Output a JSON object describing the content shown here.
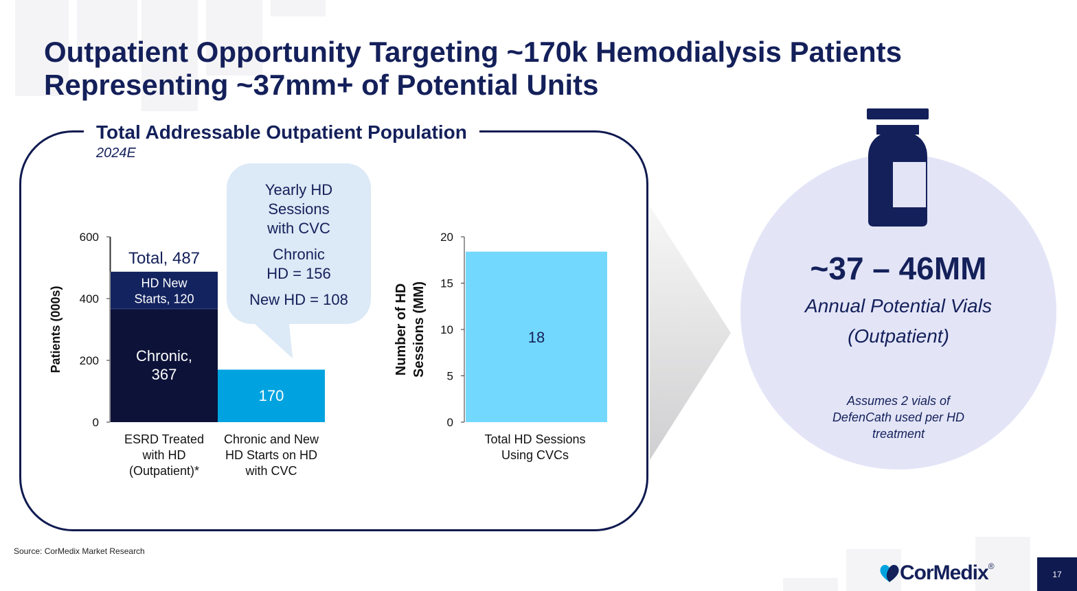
{
  "slide": {
    "title_line1": "Outpatient Opportunity Targeting ~170k Hemodialysis Patients",
    "title_line2": "Representing ~37mm+ of Potential Units",
    "panel_title": "Total Addressable Outpatient Population",
    "panel_subtitle": "2024E",
    "bubble": {
      "line1": "Yearly HD",
      "line2": "Sessions",
      "line3": "with CVC",
      "line4": "Chronic",
      "line5": "HD = 156",
      "line6": "New HD = 108"
    },
    "range": "~37 – 46MM",
    "vial_label_line1": "Annual Potential Vials",
    "vial_label_line2": "(Outpatient)",
    "assumption_line1": "Assumes 2 vials of",
    "assumption_line2": "DefenCath used per HD",
    "assumption_line3": "treatment",
    "source": "Source:  CorMedix Market Research",
    "logo_text": "CorMedix",
    "logo_mark": "®",
    "page_number": "17"
  },
  "colors": {
    "navy": "#14205a",
    "chronic": "#0c1238",
    "hd_new_starts": "#13235f",
    "cvc_bar": "#00a3df",
    "sessions_bar": "#73d8fd",
    "bubble": "#dce9f6",
    "circle": "#e3e5f7"
  },
  "chart_data": [
    {
      "type": "bar",
      "stacked": true,
      "ylabel": "Patients (000s)",
      "ylim": [
        0,
        600
      ],
      "yticks": [
        0,
        200,
        400,
        600
      ],
      "categories": [
        "ESRD Treated with HD (Outpatient)*",
        "Chronic and New HD Starts on HD with CVC"
      ],
      "category_lines": [
        [
          "ESRD Treated",
          "with HD",
          "(Outpatient)*"
        ],
        [
          "Chronic and New",
          "HD Starts on HD",
          "with CVC"
        ]
      ],
      "series": [
        {
          "values": [
            367,
            170
          ],
          "labels": [
            [
              "Chronic,",
              "367"
            ],
            [
              "170"
            ]
          ]
        },
        {
          "values": [
            120,
            0
          ],
          "labels": [
            [
              "HD New",
              "Starts, 120"
            ],
            []
          ]
        }
      ],
      "annotation": "Total, 487"
    },
    {
      "type": "bar",
      "ylabel_lines": [
        "Number of HD",
        "Sessions (MM)"
      ],
      "ylim": [
        0,
        20
      ],
      "yticks": [
        0,
        5,
        10,
        15,
        20
      ],
      "categories": [
        "Total HD Sessions Using CVCs"
      ],
      "category_lines": [
        [
          "Total HD Sessions",
          "Using CVCs"
        ]
      ],
      "values": [
        18.4
      ],
      "data_labels": [
        "18"
      ]
    }
  ]
}
